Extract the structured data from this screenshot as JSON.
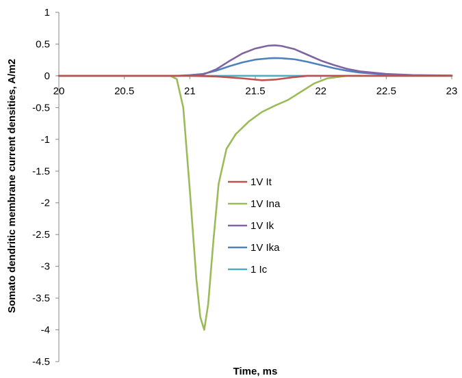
{
  "chart_data": {
    "type": "line",
    "xlabel": "Time, ms",
    "ylabel": "Somato dendritic membrane current densities, A/m2",
    "xlim": [
      20,
      23
    ],
    "ylim": [
      -4.5,
      1
    ],
    "x_ticks": [
      "20",
      "20.5",
      "21",
      "21.5",
      "22",
      "22.5",
      "23"
    ],
    "y_ticks": [
      "1",
      "0.5",
      "0",
      "-0.5",
      "-1",
      "-1.5",
      "-2",
      "-2.5",
      "-3",
      "-3.5",
      "-4",
      "-4.5"
    ],
    "grid": false,
    "legend_position": "center",
    "series": [
      {
        "name": "1V It",
        "color": "#c0504d",
        "points": [
          [
            20,
            0
          ],
          [
            21.0,
            0
          ],
          [
            21.2,
            -0.01
          ],
          [
            21.4,
            -0.04
          ],
          [
            21.55,
            -0.07
          ],
          [
            21.65,
            -0.06
          ],
          [
            21.8,
            -0.02
          ],
          [
            21.9,
            0
          ],
          [
            23,
            0
          ]
        ]
      },
      {
        "name": "1V Ina",
        "color": "#9bbb59",
        "points": [
          [
            20,
            0
          ],
          [
            20.85,
            0
          ],
          [
            20.9,
            -0.05
          ],
          [
            20.95,
            -0.5
          ],
          [
            21.0,
            -1.8
          ],
          [
            21.05,
            -3.2
          ],
          [
            21.08,
            -3.8
          ],
          [
            21.11,
            -4.0
          ],
          [
            21.14,
            -3.6
          ],
          [
            21.18,
            -2.6
          ],
          [
            21.22,
            -1.7
          ],
          [
            21.28,
            -1.15
          ],
          [
            21.35,
            -0.92
          ],
          [
            21.45,
            -0.72
          ],
          [
            21.55,
            -0.57
          ],
          [
            21.65,
            -0.47
          ],
          [
            21.75,
            -0.38
          ],
          [
            21.85,
            -0.25
          ],
          [
            21.95,
            -0.12
          ],
          [
            22.05,
            -0.04
          ],
          [
            22.2,
            0
          ],
          [
            23,
            0
          ]
        ]
      },
      {
        "name": "1V Ik",
        "color": "#8064a2",
        "points": [
          [
            20,
            0
          ],
          [
            20.9,
            0
          ],
          [
            21.0,
            0.005
          ],
          [
            21.1,
            0.02
          ],
          [
            21.2,
            0.1
          ],
          [
            21.3,
            0.23
          ],
          [
            21.4,
            0.35
          ],
          [
            21.5,
            0.43
          ],
          [
            21.6,
            0.475
          ],
          [
            21.65,
            0.48
          ],
          [
            21.7,
            0.47
          ],
          [
            21.8,
            0.42
          ],
          [
            21.9,
            0.33
          ],
          [
            22.0,
            0.24
          ],
          [
            22.1,
            0.17
          ],
          [
            22.2,
            0.11
          ],
          [
            22.3,
            0.07
          ],
          [
            22.5,
            0.03
          ],
          [
            22.7,
            0.012
          ],
          [
            23,
            0.005
          ]
        ]
      },
      {
        "name": "1V Ika",
        "color": "#4f81bd",
        "points": [
          [
            20,
            0
          ],
          [
            20.9,
            0
          ],
          [
            21.0,
            0.01
          ],
          [
            21.1,
            0.03
          ],
          [
            21.2,
            0.08
          ],
          [
            21.3,
            0.15
          ],
          [
            21.4,
            0.21
          ],
          [
            21.5,
            0.255
          ],
          [
            21.6,
            0.275
          ],
          [
            21.65,
            0.28
          ],
          [
            21.7,
            0.277
          ],
          [
            21.8,
            0.26
          ],
          [
            21.9,
            0.22
          ],
          [
            22.0,
            0.17
          ],
          [
            22.1,
            0.12
          ],
          [
            22.2,
            0.08
          ],
          [
            22.3,
            0.05
          ],
          [
            22.5,
            0.02
          ],
          [
            22.7,
            0.008
          ],
          [
            23,
            0.003
          ]
        ]
      },
      {
        "name": "1 Ic",
        "color": "#4bacc6",
        "points": [
          [
            20,
            0
          ],
          [
            23,
            0
          ]
        ]
      }
    ]
  }
}
